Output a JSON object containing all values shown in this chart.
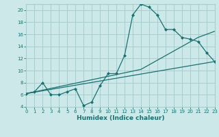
{
  "xlabel": "Humidex (Indice chaleur)",
  "bg_color": "#cce8e8",
  "grid_color": "#a8cccc",
  "line_color": "#1a7070",
  "main_x": [
    0,
    1,
    2,
    3,
    4,
    5,
    6,
    7,
    8,
    9,
    10,
    11,
    12,
    13,
    14,
    15,
    16,
    17,
    18,
    19,
    20,
    21,
    22,
    23
  ],
  "main_y": [
    6.2,
    6.5,
    8.0,
    6.0,
    6.0,
    6.5,
    7.0,
    4.2,
    4.8,
    7.5,
    9.5,
    9.5,
    12.5,
    19.2,
    21.0,
    20.5,
    19.2,
    16.8,
    16.8,
    15.5,
    15.2,
    14.8,
    13.0,
    11.5
  ],
  "line2_x": [
    0,
    23
  ],
  "line2_y": [
    6.2,
    11.5
  ],
  "line3_x": [
    0,
    14,
    21,
    23
  ],
  "line3_y": [
    6.2,
    10.2,
    15.5,
    16.5
  ],
  "xlim": [
    0,
    23
  ],
  "ylim": [
    4,
    21
  ],
  "yticks": [
    4,
    6,
    8,
    10,
    12,
    14,
    16,
    18,
    20
  ],
  "xticks": [
    0,
    1,
    2,
    3,
    4,
    5,
    6,
    7,
    8,
    9,
    10,
    11,
    12,
    13,
    14,
    15,
    16,
    17,
    18,
    19,
    20,
    21,
    22,
    23
  ],
  "tick_fontsize": 5.0,
  "xlabel_fontsize": 6.5
}
